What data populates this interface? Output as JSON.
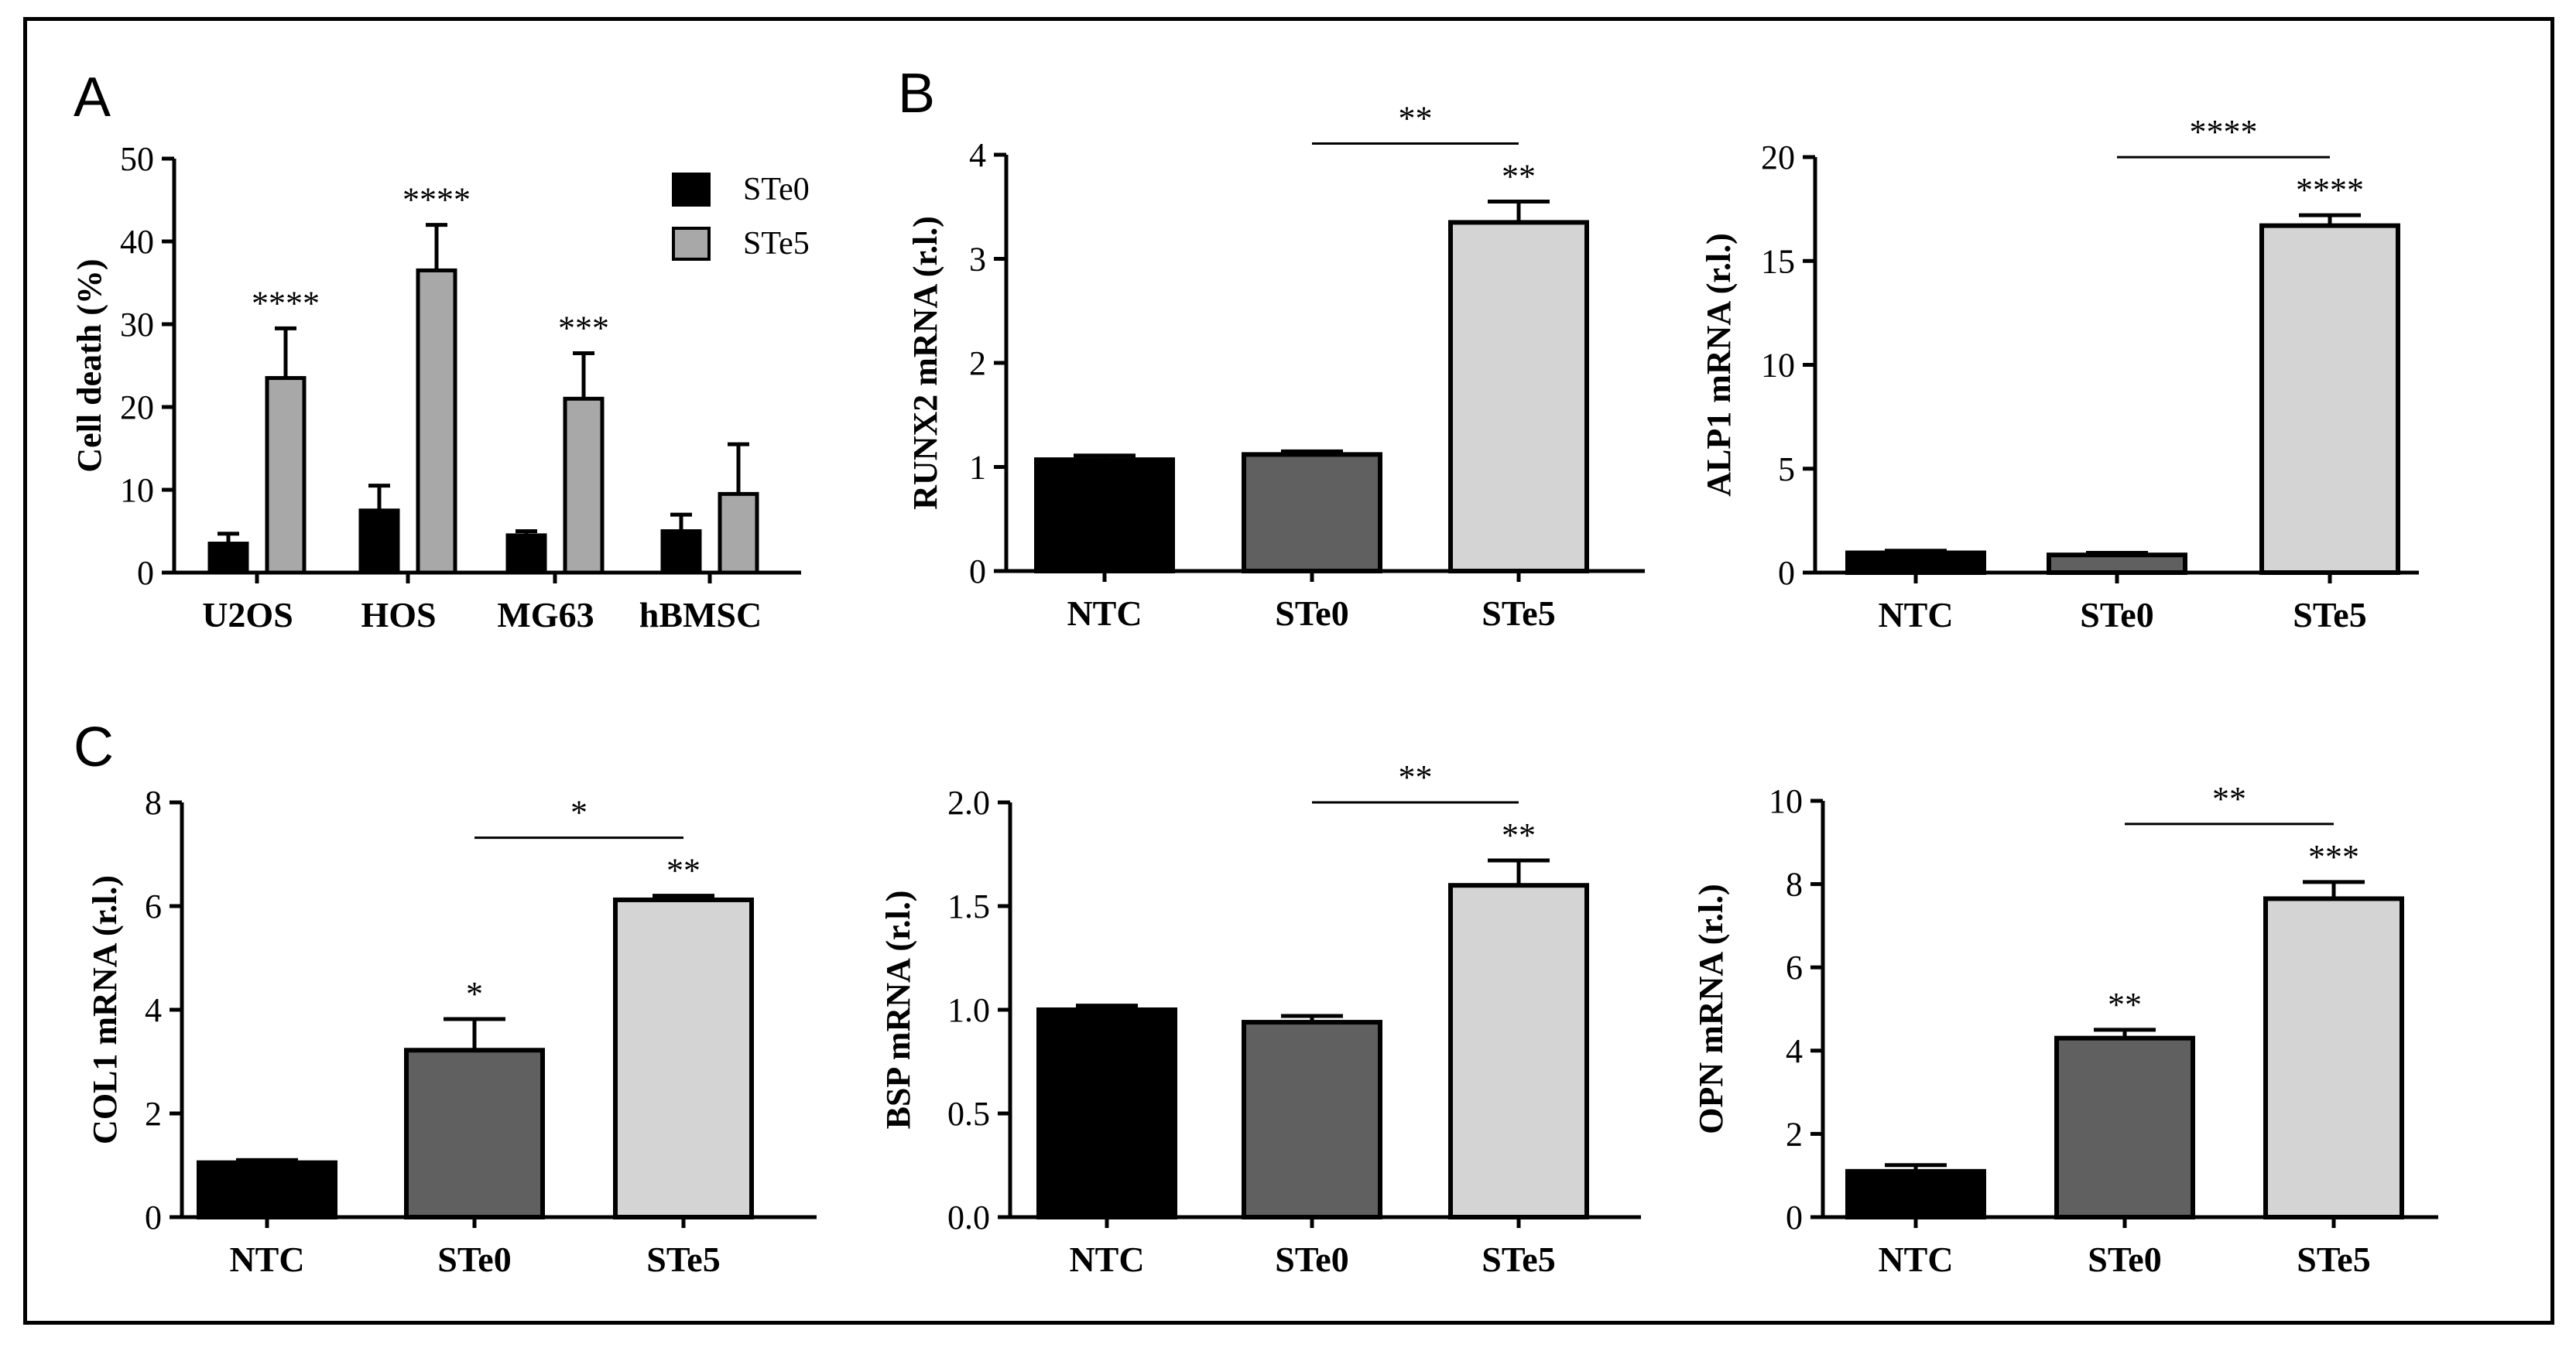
{
  "panels": {
    "a": "A",
    "b": "B",
    "c": "C"
  },
  "colors": {
    "black": "#000000",
    "dark_gray": "#606060",
    "light_gray": "#d4d4d4",
    "mid_gray": "#a8a8a8"
  },
  "chart_data": [
    {
      "id": "A",
      "type": "bar",
      "title": "",
      "xlabel": "",
      "ylabel": "Cell death (%)",
      "ylim": [
        0,
        50
      ],
      "yticks": [
        "0",
        "10",
        "20",
        "30",
        "40",
        "50"
      ],
      "categories": [
        "U2OS",
        "HOS",
        "MG63",
        "hBMSC"
      ],
      "legend_position": "top-right",
      "series": [
        {
          "name": "STe0",
          "color": "#000000",
          "values": [
            3.5,
            7.5,
            4.5,
            5
          ],
          "errors": [
            1.2,
            3,
            0.5,
            2
          ]
        },
        {
          "name": "STe5",
          "color": "#a8a8a8",
          "values": [
            23.5,
            36.5,
            21,
            9.5
          ],
          "errors": [
            6,
            5.5,
            5.5,
            6
          ]
        }
      ],
      "annotations": [
        {
          "series": 1,
          "category": 0,
          "text": "****"
        },
        {
          "series": 1,
          "category": 1,
          "text": "****"
        },
        {
          "series": 1,
          "category": 2,
          "text": "***"
        }
      ]
    },
    {
      "id": "B1",
      "type": "bar",
      "ylabel": "RUNX2 mRNA (r.l.)",
      "ylim": [
        0,
        4
      ],
      "yticks": [
        "0",
        "1",
        "2",
        "3",
        "4"
      ],
      "categories": [
        "NTC",
        "STe0",
        "STe5"
      ],
      "values": [
        1.07,
        1.12,
        3.35
      ],
      "errors": [
        0.04,
        0.03,
        0.2
      ],
      "bar_colors": [
        "#000000",
        "#606060",
        "#d4d4d4"
      ],
      "annotations": [
        {
          "category": 2,
          "text": "**"
        }
      ],
      "bracket": {
        "from": 1,
        "to": 2,
        "text": "**"
      }
    },
    {
      "id": "B2",
      "type": "bar",
      "ylabel": "ALP1 mRNA (r.l.)",
      "ylim": [
        0,
        20
      ],
      "yticks": [
        "0",
        "5",
        "10",
        "15",
        "20"
      ],
      "categories": [
        "NTC",
        "STe0",
        "STe5"
      ],
      "values": [
        0.95,
        0.85,
        16.7
      ],
      "errors": [
        0.1,
        0.1,
        0.5
      ],
      "bar_colors": [
        "#000000",
        "#606060",
        "#d4d4d4"
      ],
      "annotations": [
        {
          "category": 2,
          "text": "****"
        }
      ],
      "bracket": {
        "from": 1,
        "to": 2,
        "text": "****"
      }
    },
    {
      "id": "C1",
      "type": "bar",
      "ylabel": "COL1 mRNA (r.l.)",
      "ylim": [
        0,
        8
      ],
      "yticks": [
        "0",
        "2",
        "4",
        "6",
        "8"
      ],
      "categories": [
        "NTC",
        "STe0",
        "STe5"
      ],
      "values": [
        1.05,
        3.22,
        6.12
      ],
      "errors": [
        0.05,
        0.6,
        0.08
      ],
      "bar_colors": [
        "#000000",
        "#606060",
        "#d4d4d4"
      ],
      "annotations": [
        {
          "category": 1,
          "text": "*"
        },
        {
          "category": 2,
          "text": "**"
        }
      ],
      "bracket": {
        "from": 1,
        "to": 2,
        "text": "*"
      }
    },
    {
      "id": "C2",
      "type": "bar",
      "ylabel": "BSP mRNA (r.l.)",
      "ylim": [
        0,
        2
      ],
      "yticks": [
        "0.0",
        "0.5",
        "1.0",
        "1.5",
        "2.0"
      ],
      "categories": [
        "NTC",
        "STe0",
        "STe5"
      ],
      "values": [
        1.0,
        0.94,
        1.6
      ],
      "errors": [
        0.02,
        0.03,
        0.12
      ],
      "bar_colors": [
        "#000000",
        "#606060",
        "#d4d4d4"
      ],
      "annotations": [
        {
          "category": 2,
          "text": "**"
        }
      ],
      "bracket": {
        "from": 1,
        "to": 2,
        "text": "**"
      }
    },
    {
      "id": "C3",
      "type": "bar",
      "ylabel": "OPN mRNA (r.l.)",
      "ylim": [
        0,
        10
      ],
      "yticks": [
        "0",
        "2",
        "4",
        "6",
        "8",
        "10"
      ],
      "categories": [
        "NTC",
        "STe0",
        "STe5"
      ],
      "values": [
        1.1,
        4.3,
        7.65
      ],
      "errors": [
        0.15,
        0.2,
        0.4
      ],
      "bar_colors": [
        "#000000",
        "#606060",
        "#d4d4d4"
      ],
      "annotations": [
        {
          "category": 1,
          "text": "**"
        },
        {
          "category": 2,
          "text": "***"
        }
      ],
      "bracket": {
        "from": 1,
        "to": 2,
        "text": "**"
      }
    }
  ]
}
